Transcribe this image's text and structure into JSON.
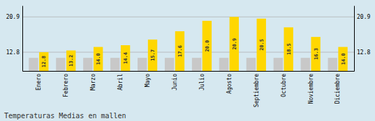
{
  "chart_data": {
    "type": "bar",
    "title": "Temperaturas Medias en mallen",
    "categories": [
      "Enero",
      "Febrero",
      "Marzo",
      "Abril",
      "Mayo",
      "Junio",
      "Julio",
      "Agosto",
      "Septiembre",
      "Octubre",
      "Noviembre",
      "Diciembre"
    ],
    "series": [
      {
        "color": "#C8C8C8",
        "values": [
          11.5,
          11.5,
          11.5,
          11.5,
          11.5,
          11.5,
          11.5,
          11.5,
          11.5,
          11.5,
          11.5,
          11.5
        ]
      },
      {
        "color": "#FFD700",
        "values": [
          12.8,
          13.2,
          14.0,
          14.4,
          15.7,
          17.6,
          20.0,
          20.9,
          20.5,
          18.5,
          16.3,
          14.0
        ],
        "value_labels": [
          "12.8",
          "13.2",
          "14.0",
          "14.4",
          "15.7",
          "17.6",
          "20.0",
          "20.9",
          "20.5",
          "18.5",
          "16.3",
          "14.0"
        ],
        "data_labels": true
      }
    ],
    "ylim": [
      8.5,
      23.5
    ],
    "yticks": [
      12.8,
      20.9
    ],
    "grid": true
  }
}
